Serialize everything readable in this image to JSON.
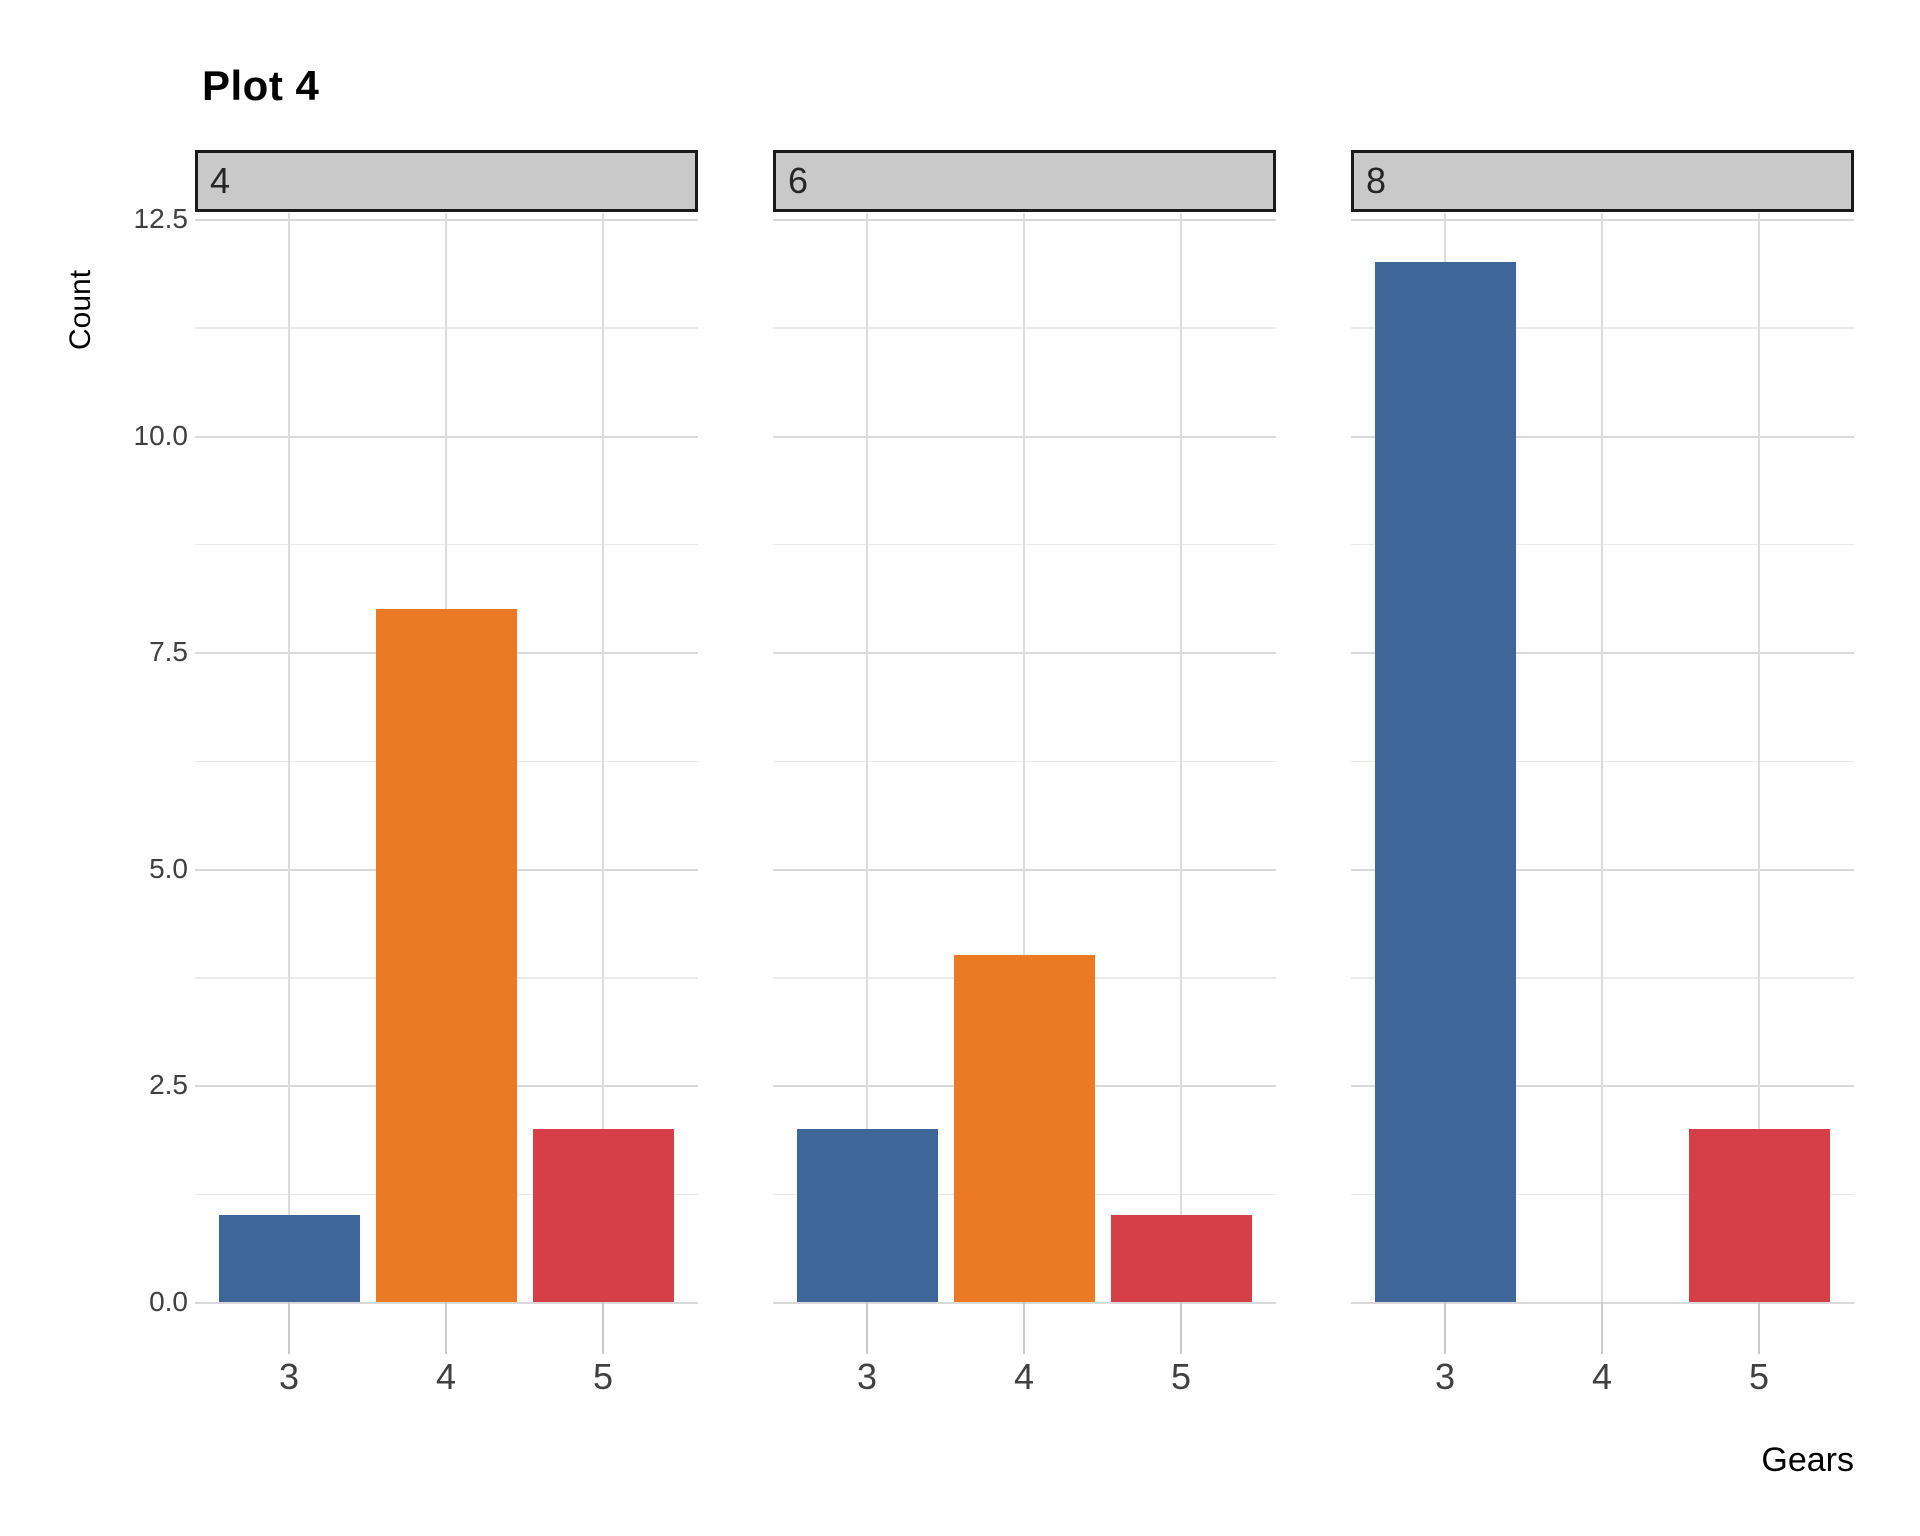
{
  "chart_data": {
    "type": "bar",
    "title": "Plot 4",
    "xlabel": "Gears",
    "ylabel": "Count",
    "categories": [
      "3",
      "4",
      "5"
    ],
    "facets": [
      {
        "label": "4",
        "values": [
          1,
          8,
          2
        ]
      },
      {
        "label": "6",
        "values": [
          2,
          4,
          1
        ]
      },
      {
        "label": "8",
        "values": [
          12,
          0,
          2
        ]
      }
    ],
    "bar_colors": [
      "#3F6699",
      "#EC7A24",
      "#D43F48"
    ],
    "y_ticks": [
      0.0,
      2.5,
      5.0,
      7.5,
      10.0,
      12.5
    ],
    "y_tick_labels": [
      "0.0",
      "2.5",
      "5.0",
      "7.5",
      "10.0",
      "12.5"
    ],
    "y_minor_ticks": [
      1.25,
      3.75,
      6.25,
      8.75,
      11.25
    ],
    "ylim": [
      0,
      12.6
    ],
    "grid": true,
    "legend": false,
    "facet_strip": {
      "fill": "#C9C9C9",
      "border": "#1A1A1A",
      "text_color": "#262626"
    },
    "theme_colors": {
      "background": "#FFFFFF",
      "grid_major": "#D9D9D9",
      "grid_minor": "#EAEAEA",
      "tick_mark": "#C9C9C9",
      "tick_label": "#404040",
      "title_color": "#000000"
    }
  }
}
